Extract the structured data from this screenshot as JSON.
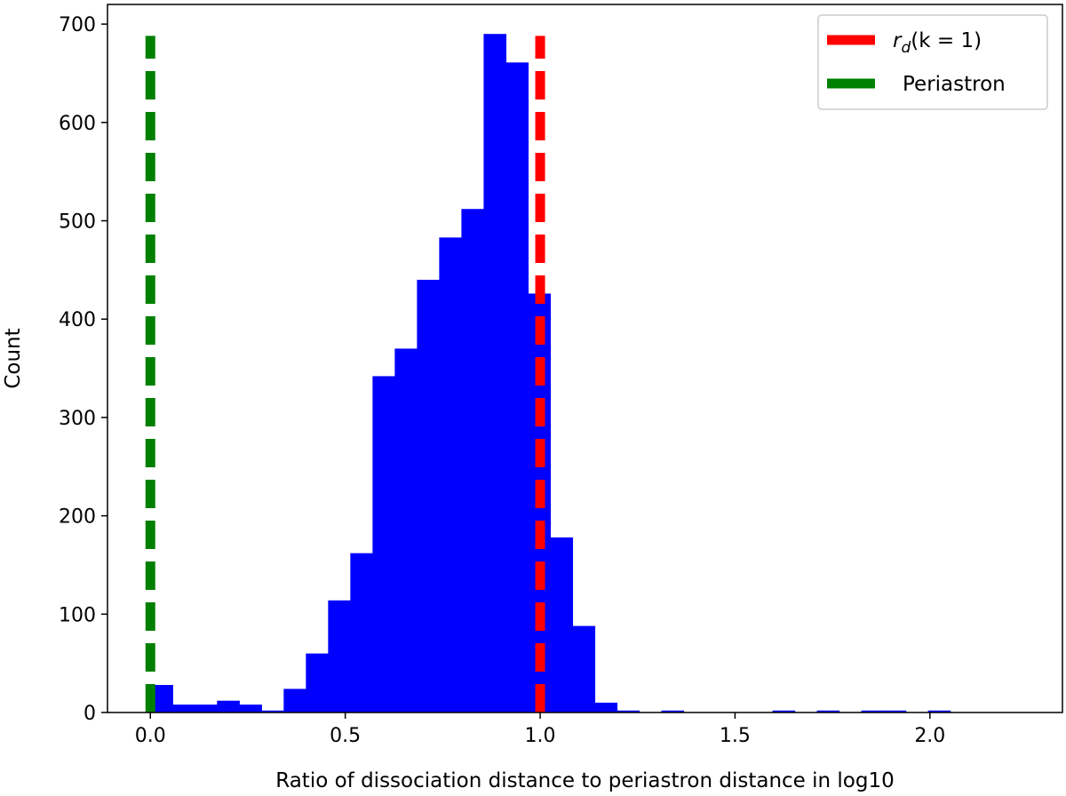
{
  "chart_data": {
    "type": "bar",
    "title": "",
    "xlabel": "Ratio of dissociation distance to periastron distance in log10",
    "ylabel": "Count",
    "xlim": [
      -0.11,
      2.34
    ],
    "ylim": [
      0,
      720
    ],
    "x_ticks": [
      "0.0",
      "0.5",
      "1.0",
      "1.5",
      "2.0"
    ],
    "x_tick_values": [
      0.0,
      0.5,
      1.0,
      1.5,
      2.0
    ],
    "y_ticks": [
      "0",
      "100",
      "200",
      "300",
      "400",
      "500",
      "600",
      "700"
    ],
    "y_tick_values": [
      0,
      100,
      200,
      300,
      400,
      500,
      600,
      700
    ],
    "grid": false,
    "legend_placement": "top-right",
    "histogram": {
      "color": "#0000ff",
      "bin_width": 0.057,
      "bin_starts": [
        0.0,
        0.057,
        0.114,
        0.171,
        0.228,
        0.285,
        0.342,
        0.399,
        0.456,
        0.513,
        0.57,
        0.627,
        0.684,
        0.741,
        0.798,
        0.855,
        0.912,
        0.969,
        1.026,
        1.083,
        1.14,
        1.197,
        1.254,
        1.311,
        1.368,
        1.425,
        1.482,
        1.539,
        1.596,
        1.653,
        1.71,
        1.767,
        1.824,
        1.881,
        1.938,
        1.995,
        2.052
      ],
      "counts": [
        28,
        8,
        8,
        12,
        8,
        2,
        24,
        60,
        114,
        162,
        342,
        370,
        440,
        483,
        512,
        690,
        661,
        426,
        178,
        88,
        10,
        2,
        0,
        2,
        0,
        0,
        0,
        0,
        2,
        0,
        2,
        0,
        2,
        2,
        0,
        2,
        0
      ]
    },
    "vlines": [
      {
        "name": "r_d(k = 1)",
        "x": 1.0,
        "color": "#ff0000",
        "y_top": 688
      },
      {
        "name": "Periastron",
        "x": 0.0,
        "color": "#008000",
        "y_top": 688
      }
    ],
    "legend": [
      {
        "label_main": "r",
        "label_sub": "d",
        "label_rest": "(k = 1)",
        "color": "#ff0000"
      },
      {
        "label_main": "Periastron",
        "label_sub": "",
        "label_rest": "",
        "color": "#008000"
      }
    ]
  }
}
